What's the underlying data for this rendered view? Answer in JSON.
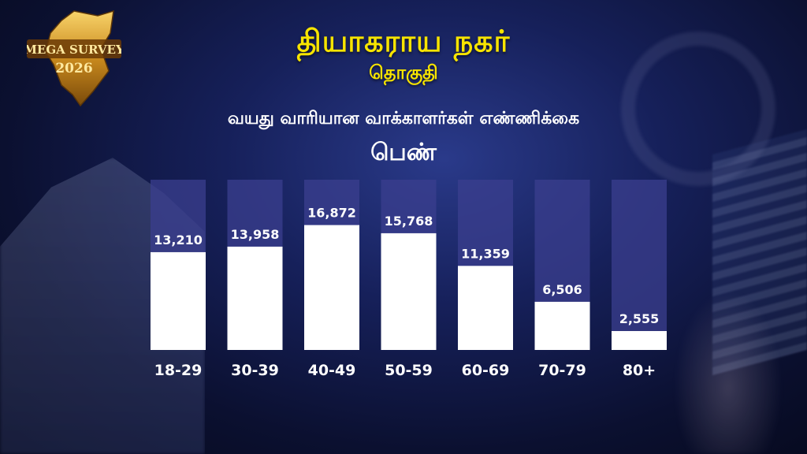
{
  "header": {
    "logo_line1": "MEGA SURVEY",
    "logo_line2": "2026",
    "title": "தியாகராய நகர்",
    "subtitle": "தொகுதி",
    "heading": "வயது வாரியான வாக்காளர்கள் எண்ணிக்கை",
    "gender": "பெண்"
  },
  "colors": {
    "title": "#f7e400",
    "bar": "#ffffff",
    "track": "#3b3f8f",
    "label": "#ffffff"
  },
  "chart_data": {
    "type": "bar",
    "categories": [
      "18-29",
      "30-39",
      "40-49",
      "50-59",
      "60-69",
      "70-79",
      "80+"
    ],
    "values": [
      13210,
      13958,
      16872,
      15768,
      11359,
      6506,
      2555
    ],
    "value_labels": [
      "13,210",
      "13,958",
      "16,872",
      "15,768",
      "11,359",
      "6,506",
      "2,555"
    ],
    "title": "பெண்",
    "ylim": [
      0,
      23000
    ],
    "grid": false
  }
}
